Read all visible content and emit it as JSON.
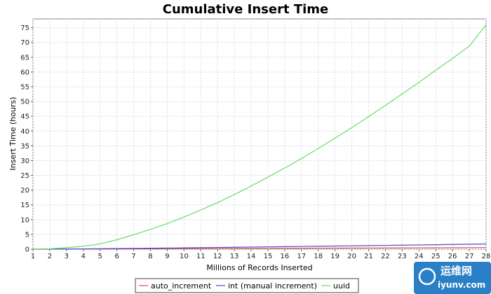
{
  "chart_data": {
    "type": "line",
    "title": "Cumulative Insert Time",
    "xlabel": "Millions of Records Inserted",
    "ylabel": "Insert Time (hours)",
    "xlim": [
      1,
      28
    ],
    "ylim": [
      0,
      78
    ],
    "xticks": [
      1,
      2,
      3,
      4,
      5,
      6,
      7,
      8,
      9,
      10,
      11,
      12,
      13,
      14,
      15,
      16,
      17,
      18,
      19,
      20,
      21,
      22,
      23,
      24,
      25,
      26,
      27,
      28
    ],
    "yticks": [
      0,
      5,
      10,
      15,
      20,
      25,
      30,
      35,
      40,
      45,
      50,
      55,
      60,
      65,
      70,
      75
    ],
    "grid": true,
    "legend_position": "bottom",
    "x": [
      1,
      2,
      3,
      4,
      5,
      6,
      7,
      8,
      9,
      10,
      11,
      12,
      13,
      14,
      15,
      16,
      17,
      18,
      19,
      20,
      21,
      22,
      23,
      24,
      25,
      26,
      27,
      28
    ],
    "series": [
      {
        "name": "auto_increment",
        "color": "#d9534f",
        "values": [
          0,
          0.02,
          0.04,
          0.06,
          0.08,
          0.1,
          0.12,
          0.14,
          0.16,
          0.18,
          0.2,
          0.22,
          0.24,
          0.26,
          0.28,
          0.3,
          0.32,
          0.34,
          0.36,
          0.38,
          0.4,
          0.42,
          0.44,
          0.46,
          0.48,
          0.5,
          0.52,
          0.55
        ]
      },
      {
        "name": "int (manual increment)",
        "color": "#4a4ad0",
        "values": [
          0,
          0.03,
          0.06,
          0.1,
          0.15,
          0.2,
          0.26,
          0.32,
          0.38,
          0.45,
          0.52,
          0.58,
          0.65,
          0.72,
          0.79,
          0.86,
          0.93,
          1.0,
          1.07,
          1.14,
          1.21,
          1.29,
          1.36,
          1.44,
          1.52,
          1.6,
          1.68,
          1.78
        ]
      },
      {
        "name": "uuid",
        "color": "#66dd66",
        "values": [
          0,
          0.15,
          0.5,
          1.0,
          1.8,
          3.2,
          4.9,
          6.7,
          8.7,
          10.9,
          13.3,
          15.8,
          18.5,
          21.4,
          24.4,
          27.5,
          30.7,
          34.1,
          37.6,
          41.2,
          44.9,
          48.7,
          52.6,
          56.5,
          60.6,
          64.6,
          68.8,
          76
        ]
      }
    ]
  },
  "watermark": {
    "text": "运维网",
    "subtext": "iyunv.com"
  }
}
